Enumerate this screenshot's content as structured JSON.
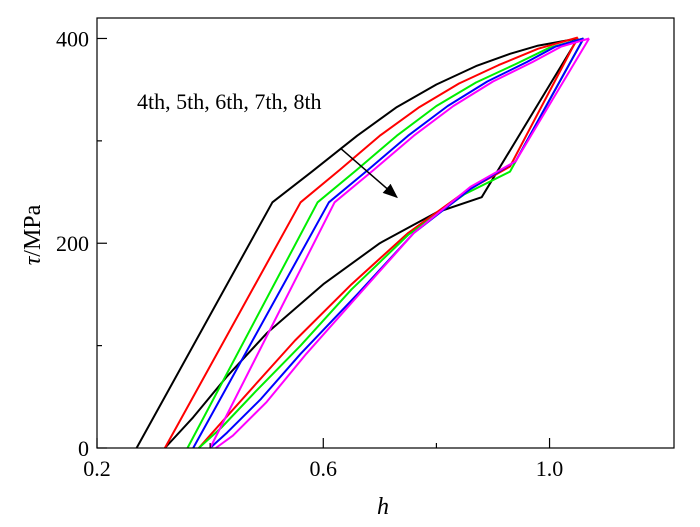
{
  "chart_data": {
    "type": "line",
    "xlabel": "h",
    "ylabel_symbol": "τ",
    "ylabel_unit": "/MPa",
    "xlim": [
      0.2,
      1.22
    ],
    "ylim": [
      0,
      420
    ],
    "x_ticks": [
      {
        "value": 0.2,
        "label": "0.2"
      },
      {
        "value": 0.6,
        "label": "0.6"
      },
      {
        "value": 1.0,
        "label": "1.0"
      }
    ],
    "y_ticks": [
      {
        "value": 0,
        "label": "0"
      },
      {
        "value": 200,
        "label": "200"
      },
      {
        "value": 400,
        "label": "400"
      }
    ],
    "x_minor_ticks": [
      0.4,
      0.8
    ],
    "y_minor_ticks": [
      100,
      300
    ],
    "grid": false,
    "annotation": {
      "text": "4th, 5th, 6th, 7th, 8th",
      "arrow_from": [
        0.63,
        293
      ],
      "arrow_to": [
        0.73,
        245
      ]
    },
    "series": [
      {
        "color": "#000000",
        "upper": [
          [
            0.27,
            0
          ],
          [
            0.51,
            240
          ],
          [
            0.58,
            270
          ],
          [
            0.66,
            305
          ],
          [
            0.73,
            333
          ],
          [
            0.8,
            355
          ],
          [
            0.87,
            373
          ],
          [
            0.93,
            385
          ],
          [
            0.98,
            393
          ],
          [
            1.05,
            400
          ]
        ],
        "lower": [
          [
            1.05,
            400
          ],
          [
            0.88,
            245
          ],
          [
            0.8,
            230
          ],
          [
            0.7,
            200
          ],
          [
            0.6,
            160
          ],
          [
            0.5,
            112
          ],
          [
            0.43,
            70
          ],
          [
            0.37,
            30
          ],
          [
            0.32,
            0
          ]
        ]
      },
      {
        "color": "#ff0000",
        "upper": [
          [
            0.32,
            0
          ],
          [
            0.56,
            240
          ],
          [
            0.63,
            272
          ],
          [
            0.7,
            305
          ],
          [
            0.77,
            333
          ],
          [
            0.84,
            356
          ],
          [
            0.91,
            374
          ],
          [
            0.98,
            390
          ],
          [
            1.05,
            401
          ]
        ],
        "lower": [
          [
            1.05,
            401
          ],
          [
            0.93,
            275
          ],
          [
            0.85,
            250
          ],
          [
            0.75,
            210
          ],
          [
            0.65,
            160
          ],
          [
            0.55,
            105
          ],
          [
            0.48,
            62
          ],
          [
            0.42,
            25
          ],
          [
            0.38,
            0
          ]
        ]
      },
      {
        "color": "#00ee00",
        "upper": [
          [
            0.36,
            0
          ],
          [
            0.59,
            240
          ],
          [
            0.66,
            272
          ],
          [
            0.73,
            305
          ],
          [
            0.8,
            334
          ],
          [
            0.87,
            357
          ],
          [
            0.94,
            375
          ],
          [
            1.0,
            391
          ],
          [
            1.06,
            400
          ]
        ],
        "lower": [
          [
            1.06,
            400
          ],
          [
            0.93,
            270
          ],
          [
            0.85,
            248
          ],
          [
            0.75,
            208
          ],
          [
            0.65,
            155
          ],
          [
            0.56,
            100
          ],
          [
            0.48,
            55
          ],
          [
            0.42,
            20
          ],
          [
            0.38,
            0
          ]
        ]
      },
      {
        "color": "#0000ff",
        "upper": [
          [
            0.37,
            0
          ],
          [
            0.61,
            240
          ],
          [
            0.68,
            272
          ],
          [
            0.75,
            305
          ],
          [
            0.82,
            334
          ],
          [
            0.89,
            358
          ],
          [
            0.96,
            377
          ],
          [
            1.01,
            392
          ],
          [
            1.06,
            400
          ]
        ],
        "lower": [
          [
            1.06,
            400
          ],
          [
            0.94,
            280
          ],
          [
            0.86,
            253
          ],
          [
            0.76,
            210
          ],
          [
            0.66,
            150
          ],
          [
            0.56,
            92
          ],
          [
            0.49,
            48
          ],
          [
            0.43,
            15
          ],
          [
            0.4,
            0
          ]
        ]
      },
      {
        "color": "#ff00ff",
        "upper": [
          [
            0.4,
            0
          ],
          [
            0.62,
            240
          ],
          [
            0.69,
            272
          ],
          [
            0.76,
            305
          ],
          [
            0.83,
            334
          ],
          [
            0.9,
            358
          ],
          [
            0.97,
            377
          ],
          [
            1.02,
            392
          ],
          [
            1.07,
            400
          ]
        ],
        "lower": [
          [
            1.07,
            400
          ],
          [
            0.94,
            280
          ],
          [
            0.86,
            255
          ],
          [
            0.76,
            210
          ],
          [
            0.66,
            148
          ],
          [
            0.57,
            92
          ],
          [
            0.5,
            45
          ],
          [
            0.44,
            12
          ],
          [
            0.41,
            0
          ]
        ]
      }
    ]
  }
}
